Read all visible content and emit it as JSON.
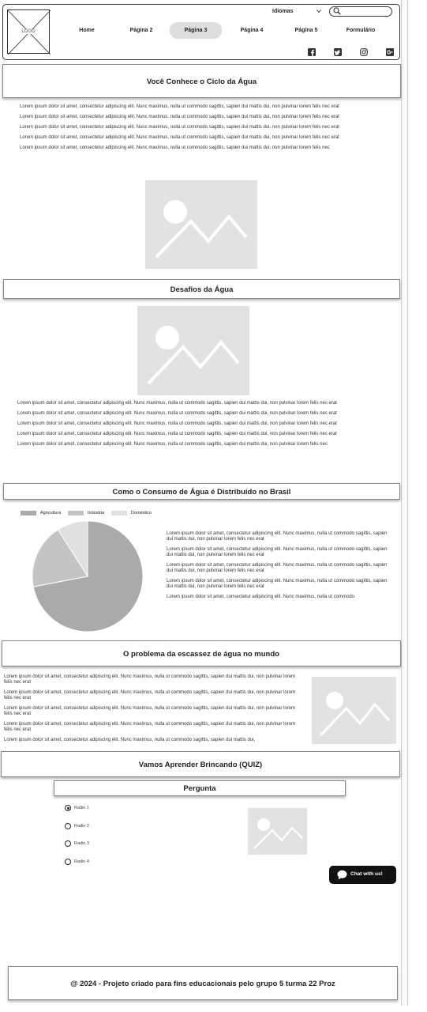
{
  "header": {
    "logo_text": "LOGO",
    "nav": [
      "Home",
      "Página 2",
      "Página 3",
      "Página 4",
      "Página 5",
      "Formulário"
    ],
    "active_nav": "Página 3",
    "language_label": "Idiomas",
    "search_placeholder": "",
    "social_icons": [
      "facebook-icon",
      "twitter-icon",
      "instagram-icon",
      "google-plus-icon"
    ]
  },
  "sections": {
    "ciclo": {
      "title": "Você Conhece o Ciclo da Água",
      "paragraphs": [
        "Lorem ipsum dolor sit amet, consectetur adipiscing elit. Nunc maximus, nulla ut commodo sagittis, sapien dui mattis dui, non pulvinar lorem felis nec erat",
        "Lorem ipsum dolor sit amet, consectetur adipiscing elit. Nunc maximus, nulla ut commodo sagittis, sapien dui mattis dui, non pulvinar lorem felis nec erat",
        "Lorem ipsum dolor sit amet, consectetur adipiscing elit. Nunc maximus, nulla ut commodo sagittis, sapien dui mattis dui, non pulvinar lorem felis nec erat",
        "Lorem ipsum dolor sit amet, consectetur adipiscing elit. Nunc maximus, nulla ut commodo sagittis, sapien dui mattis dui, non pulvinar lorem felis nec erat",
        "Lorem ipsum dolor sit amet, consectetur adipiscing elit. Nunc maximus, nulla ut commodo sagittis, sapien dui mattis dui, non pulvinar lorem felis nec"
      ]
    },
    "desafios": {
      "title": "Desafios da Água",
      "paragraphs": [
        "Lorem ipsum dolor sit amet, consectetur adipiscing elit. Nunc maximus, nulla ut commodo sagittis, sapien dui mattis dui, non pulvinar lorem felis nec erat",
        "Lorem ipsum dolor sit amet, consectetur adipiscing elit. Nunc maximus, nulla ut commodo sagittis, sapien dui mattis dui, non pulvinar lorem felis nec erat",
        "Lorem ipsum dolor sit amet, consectetur adipiscing elit. Nunc maximus, nulla ut commodo sagittis, sapien dui mattis dui, non pulvinar lorem felis nec erat",
        "Lorem ipsum dolor sit amet, consectetur adipiscing elit. Nunc maximus, nulla ut commodo sagittis, sapien dui mattis dui, non pulvinar lorem felis nec erat",
        "Lorem ipsum dolor sit amet, consectetur adipiscing elit. Nunc maximus, nulla ut commodo sagittis, sapien dui mattis dui, non pulvinar lorem felis nec"
      ]
    },
    "consumo": {
      "title": "Como o Consumo de Água é Distribuído no Brasil",
      "paragraphs": [
        "Lorem ipsum dolor sit amet, consectetur adipiscing elit. Nunc maximus, nulla ut commodo sagittis, sapien dui mattis dui, non pulvinar lorem felis nec erat",
        "Lorem ipsum dolor sit amet, consectetur adipiscing elit. Nunc maximus, nulla ut commodo sagittis, sapien dui mattis dui, non pulvinar lorem felis nec erat",
        "Lorem ipsum dolor sit amet, consectetur adipiscing elit. Nunc maximus, nulla ut commodo sagittis, sapien dui mattis dui, non pulvinar lorem felis nec erat",
        "Lorem ipsum dolor sit amet, consectetur adipiscing elit. Nunc maximus, nulla ut commodo sagittis, sapien dui mattis dui, non pulvinar lorem felis nec erat",
        "Lorem ipsum dolor sit amet, consectetur adipiscing elit. Nunc maximus, nulla ut commodo"
      ]
    },
    "escassez": {
      "title": "O problema da escassez de água no mundo",
      "paragraphs": [
        "Lorem ipsum dolor sit amet, consectetur adipiscing elit. Nunc maximus, nulla ut commodo sagittis, sapien dui mattis dui, non pulvinar lorem felis nec erat",
        "Lorem ipsum dolor sit amet, consectetur adipiscing elit. Nunc maximus, nulla ut commodo sagittis, sapien dui mattis dui, non pulvinar lorem felis nec erat",
        "Lorem ipsum dolor sit amet, consectetur adipiscing elit. Nunc maximus, nulla ut commodo sagittis, sapien dui mattis dui, non pulvinar lorem felis nec erat",
        "Lorem ipsum dolor sit amet, consectetur adipiscing elit. Nunc maximus, nulla ut commodo sagittis, sapien dui mattis dui, non pulvinar lorem felis nec erat",
        "Lorem ipsum dolor sit amet, consectetur adipiscing elit. Nunc maximus, nulla ut commodo sagittis, sapien dui mattis dui,"
      ]
    },
    "quiz": {
      "title": "Vamos Aprender Brincando (QUIZ)",
      "question_title": "Pergunta",
      "options": [
        "Radio 1",
        "Radio 2",
        "Radio 3",
        "Radio 4"
      ],
      "selected": "Radio 1"
    }
  },
  "chat": {
    "label": "Chat with us!"
  },
  "footer": {
    "text": "@ 2024 - Projeto criado para fins educacionais pelo grupo 5 turma 22 Proz"
  },
  "colors": {
    "agricultura": "#aaaaaa",
    "industria": "#c4c4c4",
    "domestico": "#e0e0e0"
  },
  "chart_data": {
    "type": "pie",
    "labels": [
      "Agricultura",
      "Indústria",
      "Doméstico"
    ],
    "values": [
      72,
      19,
      9
    ],
    "legend": "top"
  }
}
